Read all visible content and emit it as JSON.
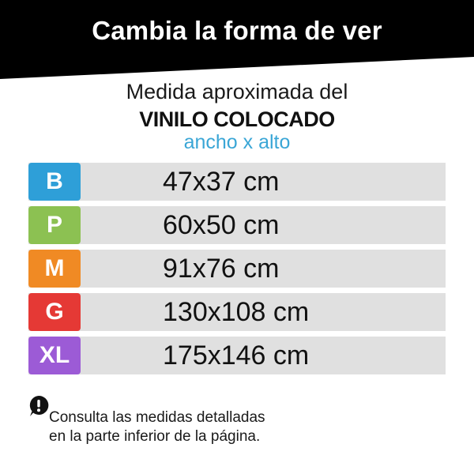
{
  "header": {
    "title": "Cambia la forma de ver"
  },
  "subtitle": {
    "line1": "Medida aproximada del",
    "line2": "VINILO COLOCADO",
    "line3": "ancho x alto"
  },
  "sizes": [
    {
      "label": "B",
      "value": "47x37 cm",
      "color": "#2e9fd8"
    },
    {
      "label": "P",
      "value": "60x50 cm",
      "color": "#8cc152"
    },
    {
      "label": "M",
      "value": "91x76 cm",
      "color": "#f08a24"
    },
    {
      "label": "G",
      "value": "130x108 cm",
      "color": "#e53935"
    },
    {
      "label": "XL",
      "value": "175x146 cm",
      "color": "#9c5bd6"
    }
  ],
  "note": {
    "icon": "info-icon",
    "line1": "Consulta las medidas detalladas",
    "line2": "en la parte inferior de la página."
  },
  "colors": {
    "header_bg": "#000000",
    "row_bg": "#e0e0e0",
    "accent_text": "#3aa6d6"
  }
}
